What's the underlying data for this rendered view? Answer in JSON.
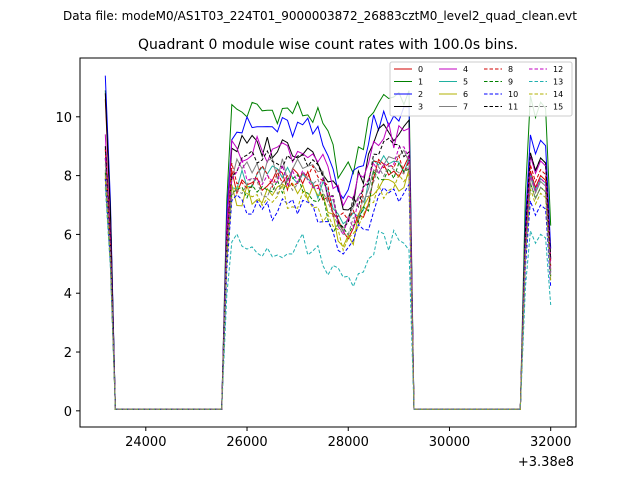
{
  "chart_data": {
    "type": "line",
    "suptitle": "Data file: modeM0/AS1T03_224T01_9000003872_26883cztM0_level2_quad_clean.evt",
    "title": "Quadrant 0 module wise count rates with 100.0s bins.",
    "xlabel": "",
    "ylabel": "",
    "x_offset_label": "+3.38e8",
    "xlim": [
      22700,
      32500
    ],
    "ylim": [
      -0.55,
      12.0
    ],
    "x_ticks": [
      24000,
      26000,
      28000,
      30000,
      32000
    ],
    "x_tick_labels": [
      "24000",
      "26000",
      "28000",
      "30000",
      "32000"
    ],
    "y_ticks": [
      0,
      2,
      4,
      6,
      8,
      10
    ],
    "y_tick_labels": [
      "0",
      "2",
      "4",
      "6",
      "8",
      "10"
    ],
    "legend_position": "top-right",
    "gaps": [
      [
        23400,
        25600
      ],
      [
        29400,
        31400
      ]
    ],
    "segments": [
      {
        "x_start": 23200,
        "x_step": 100,
        "levels": [
          10.7,
          6.2,
          0.05
        ],
        "note": "first segment decays from ~11 to zero by 23400"
      },
      {
        "x_start": 25600,
        "x_step": 100,
        "n": 38
      },
      {
        "x_start": 31400,
        "x_step": 100,
        "n": 7
      }
    ],
    "series": [
      {
        "name": "0",
        "color": "#d00000",
        "dash": "solid",
        "base": 7.8,
        "start": 10.6,
        "end": 8.0
      },
      {
        "name": "1",
        "color": "#008000",
        "dash": "solid",
        "base": 10.2,
        "start": 10.9,
        "end": 10.5
      },
      {
        "name": "2",
        "color": "#0000ff",
        "dash": "solid",
        "base": 9.6,
        "start": 11.4,
        "end": 9.2
      },
      {
        "name": "3",
        "color": "#000000",
        "dash": "solid",
        "base": 9.0,
        "start": 10.8,
        "end": 8.6
      },
      {
        "name": "4",
        "color": "#c000c0",
        "dash": "solid",
        "base": 8.9,
        "start": 9.4,
        "end": 8.5
      },
      {
        "name": "5",
        "color": "#20b0a0",
        "dash": "solid",
        "base": 7.9,
        "start": 8.6,
        "end": 7.9
      },
      {
        "name": "6",
        "color": "#b0b000",
        "dash": "solid",
        "base": 7.4,
        "start": 7.9,
        "end": 7.6
      },
      {
        "name": "7",
        "color": "#808080",
        "dash": "solid",
        "base": 8.2,
        "start": 8.2,
        "end": 7.8
      },
      {
        "name": "8",
        "color": "#d00000",
        "dash": "dashed",
        "base": 8.0,
        "start": 8.9,
        "end": 8.2
      },
      {
        "name": "9",
        "color": "#008000",
        "dash": "dashed",
        "base": 7.6,
        "start": 8.1,
        "end": 7.6
      },
      {
        "name": "10",
        "color": "#0000ff",
        "dash": "dashed",
        "base": 6.9,
        "start": 7.9,
        "end": 7.0
      },
      {
        "name": "11",
        "color": "#000000",
        "dash": "dashed",
        "base": 8.4,
        "start": 9.0,
        "end": 8.6
      },
      {
        "name": "12",
        "color": "#c000c0",
        "dash": "dashed",
        "base": 8.1,
        "start": 8.6,
        "end": 7.9
      },
      {
        "name": "13",
        "color": "#20b0b0",
        "dash": "dashed",
        "base": 5.6,
        "start": 7.6,
        "end": 6.0
      },
      {
        "name": "14",
        "color": "#b0b000",
        "dash": "dashed",
        "base": 7.3,
        "start": 8.0,
        "end": 7.4
      },
      {
        "name": "15",
        "color": "#808080",
        "dash": "dashed",
        "base": 7.7,
        "start": 8.4,
        "end": 7.6
      }
    ]
  }
}
